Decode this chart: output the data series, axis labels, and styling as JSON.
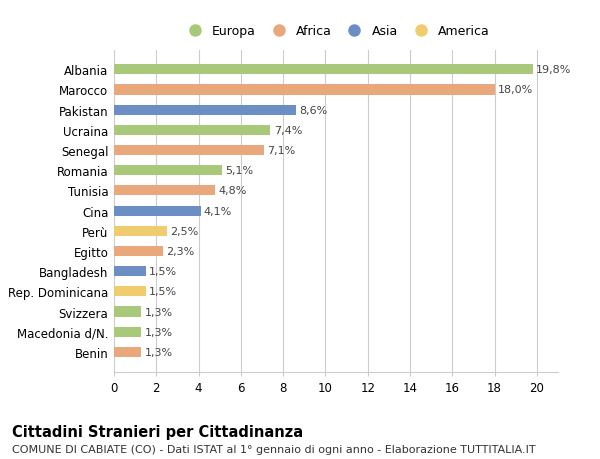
{
  "countries": [
    "Albania",
    "Marocco",
    "Pakistan",
    "Ucraina",
    "Senegal",
    "Romania",
    "Tunisia",
    "Cina",
    "Perù",
    "Egitto",
    "Bangladesh",
    "Rep. Dominicana",
    "Svizzera",
    "Macedonia d/N.",
    "Benin"
  ],
  "values": [
    19.8,
    18.0,
    8.6,
    7.4,
    7.1,
    5.1,
    4.8,
    4.1,
    2.5,
    2.3,
    1.5,
    1.5,
    1.3,
    1.3,
    1.3
  ],
  "labels": [
    "19,8%",
    "18,0%",
    "8,6%",
    "7,4%",
    "7,1%",
    "5,1%",
    "4,8%",
    "4,1%",
    "2,5%",
    "2,3%",
    "1,5%",
    "1,5%",
    "1,3%",
    "1,3%",
    "1,3%"
  ],
  "continents": [
    "Europa",
    "Africa",
    "Asia",
    "Europa",
    "Africa",
    "Europa",
    "Africa",
    "Asia",
    "America",
    "Africa",
    "Asia",
    "America",
    "Europa",
    "Europa",
    "Africa"
  ],
  "continent_colors": {
    "Europa": "#a8c87a",
    "Africa": "#e8a87c",
    "Asia": "#6b8fc4",
    "America": "#f0cc6e"
  },
  "legend_order": [
    "Europa",
    "Africa",
    "Asia",
    "America"
  ],
  "title": "Cittadini Stranieri per Cittadinanza",
  "subtitle": "COMUNE DI CABIATE (CO) - Dati ISTAT al 1° gennaio di ogni anno - Elaborazione TUTTITALIA.IT",
  "xlim": [
    0,
    21
  ],
  "xticks": [
    0,
    2,
    4,
    6,
    8,
    10,
    12,
    14,
    16,
    18,
    20
  ],
  "bg_color": "#ffffff",
  "grid_color": "#cccccc",
  "bar_height": 0.5,
  "bar_alpha": 1.0,
  "label_fontsize": 8.0,
  "ytick_fontsize": 8.5,
  "xtick_fontsize": 8.5,
  "title_fontsize": 10.5,
  "subtitle_fontsize": 8.0,
  "legend_fontsize": 9.0
}
